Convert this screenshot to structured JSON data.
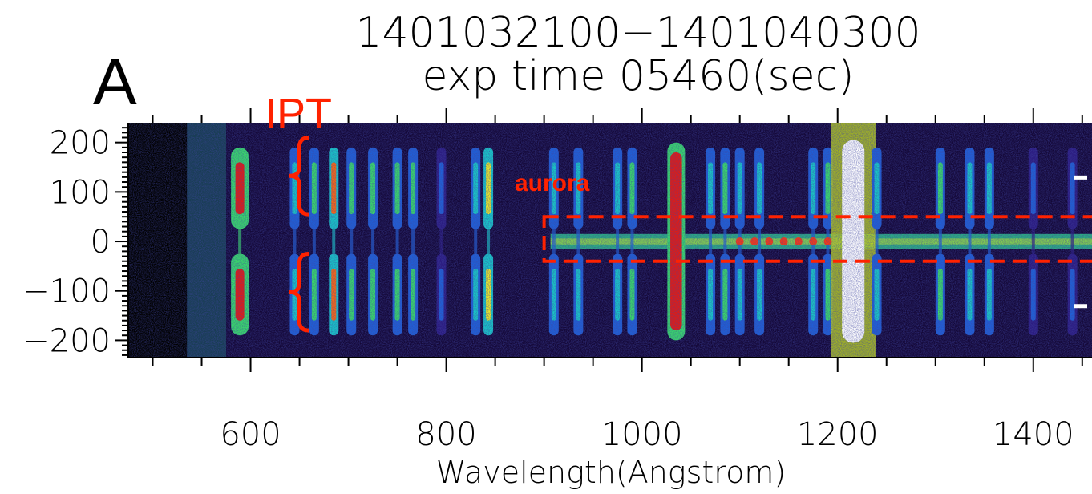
{
  "panel_label": "A",
  "chart_data": {
    "type": "heatmap",
    "title": "1401032100−1401040300",
    "subtitle": "exp time 05460(sec)",
    "xlabel": "Wavelength(Angstrom)",
    "ylabel": "",
    "xlim": [
      475,
      1460
    ],
    "ylim": [
      -235,
      240
    ],
    "xticks": [
      600,
      800,
      1000,
      1200,
      1400
    ],
    "xtick_labels": [
      "600",
      "800",
      "1000",
      "1200",
      "1400"
    ],
    "yticks": [
      200,
      100,
      0,
      -100,
      -200
    ],
    "ytick_labels": [
      "200",
      "100",
      "0",
      "−100",
      "−200"
    ],
    "colormap": [
      "#1a0a3a",
      "#2b1b80",
      "#1f5fd6",
      "#18c7c7",
      "#39d96a",
      "#e9e82a",
      "#ff6a10",
      "#e61a10",
      "#ffffff"
    ],
    "emission_lines": [
      {
        "wavelength": 589,
        "intensity": 0.9,
        "profile": "split"
      },
      {
        "wavelength": 645,
        "intensity": 0.35,
        "profile": "split"
      },
      {
        "wavelength": 665,
        "intensity": 0.45,
        "profile": "split"
      },
      {
        "wavelength": 685,
        "intensity": 0.7,
        "profile": "split"
      },
      {
        "wavelength": 703,
        "intensity": 0.55,
        "profile": "split"
      },
      {
        "wavelength": 725,
        "intensity": 0.5,
        "profile": "split"
      },
      {
        "wavelength": 750,
        "intensity": 0.5,
        "profile": "split"
      },
      {
        "wavelength": 766,
        "intensity": 0.45,
        "profile": "split"
      },
      {
        "wavelength": 795,
        "intensity": 0.3,
        "profile": "split"
      },
      {
        "wavelength": 830,
        "intensity": 0.4,
        "profile": "split"
      },
      {
        "wavelength": 843,
        "intensity": 0.65,
        "profile": "split"
      },
      {
        "wavelength": 910,
        "intensity": 0.35,
        "profile": "split"
      },
      {
        "wavelength": 935,
        "intensity": 0.35,
        "profile": "split"
      },
      {
        "wavelength": 975,
        "intensity": 0.35,
        "profile": "split"
      },
      {
        "wavelength": 990,
        "intensity": 0.45,
        "profile": "split"
      },
      {
        "wavelength": 1035,
        "intensity": 0.9,
        "profile": "full"
      },
      {
        "wavelength": 1070,
        "intensity": 0.4,
        "profile": "split"
      },
      {
        "wavelength": 1085,
        "intensity": 0.45,
        "profile": "split"
      },
      {
        "wavelength": 1100,
        "intensity": 0.35,
        "profile": "split"
      },
      {
        "wavelength": 1120,
        "intensity": 0.35,
        "profile": "split"
      },
      {
        "wavelength": 1175,
        "intensity": 0.35,
        "profile": "split"
      },
      {
        "wavelength": 1190,
        "intensity": 0.55,
        "profile": "split"
      },
      {
        "wavelength": 1216,
        "intensity": 1.0,
        "profile": "saturated"
      },
      {
        "wavelength": 1240,
        "intensity": 0.4,
        "profile": "split"
      },
      {
        "wavelength": 1305,
        "intensity": 0.5,
        "profile": "split"
      },
      {
        "wavelength": 1335,
        "intensity": 0.35,
        "profile": "split"
      },
      {
        "wavelength": 1355,
        "intensity": 0.35,
        "profile": "split"
      },
      {
        "wavelength": 1400,
        "intensity": 0.3,
        "profile": "split"
      },
      {
        "wavelength": 1440,
        "intensity": 0.3,
        "profile": "split"
      }
    ],
    "annotations": [
      {
        "text": "IPT",
        "color": "#ff2200"
      },
      {
        "text": "aurora",
        "color": "#ff2200"
      }
    ],
    "aurora_box": {
      "x_range": [
        900,
        1460
      ],
      "y_range": [
        -40,
        50
      ],
      "style": "dashed",
      "color": "#ff2200"
    }
  }
}
